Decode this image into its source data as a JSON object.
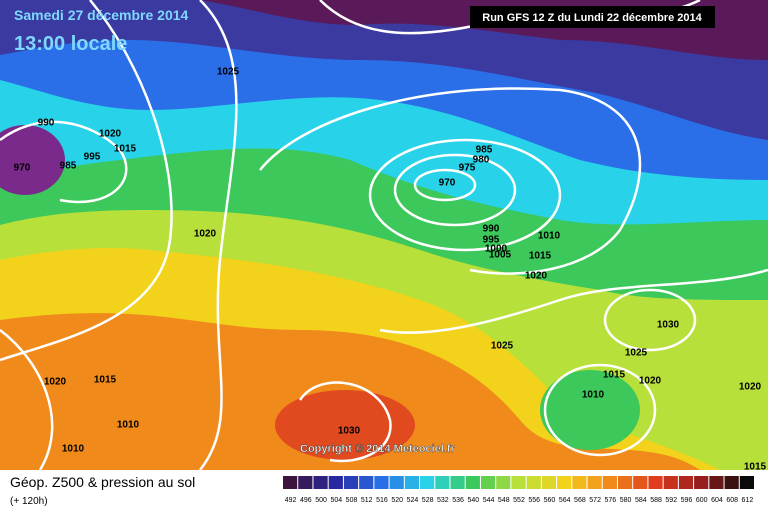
{
  "header": {
    "date": "Samedi 27 décembre 2014",
    "time": "13:00 locale",
    "run": "Run GFS 12 Z du Lundi 22 décembre 2014"
  },
  "map": {
    "isobar_labels": [
      "1025",
      "990",
      "1020",
      "1015",
      "995",
      "985",
      "970",
      "1020",
      "985",
      "980",
      "975",
      "970",
      "990",
      "995",
      "1000",
      "1005",
      "1010",
      "1015",
      "1020",
      "1030",
      "1025",
      "1025",
      "1015",
      "1020",
      "1010",
      "1020",
      "1015",
      "1010",
      "1010",
      "1030",
      "1020",
      "1015"
    ],
    "copyright": "Copyright © 2014 Meteociel.fr"
  },
  "footer": {
    "title": "Géop. Z500 & pression au sol",
    "subtitle": "(+ 120h)",
    "scale": [
      492,
      496,
      500,
      504,
      508,
      512,
      516,
      520,
      524,
      528,
      532,
      536,
      540,
      544,
      548,
      552,
      556,
      560,
      564,
      568,
      572,
      576,
      580,
      584,
      588,
      592,
      596,
      600,
      604,
      608,
      612
    ]
  }
}
